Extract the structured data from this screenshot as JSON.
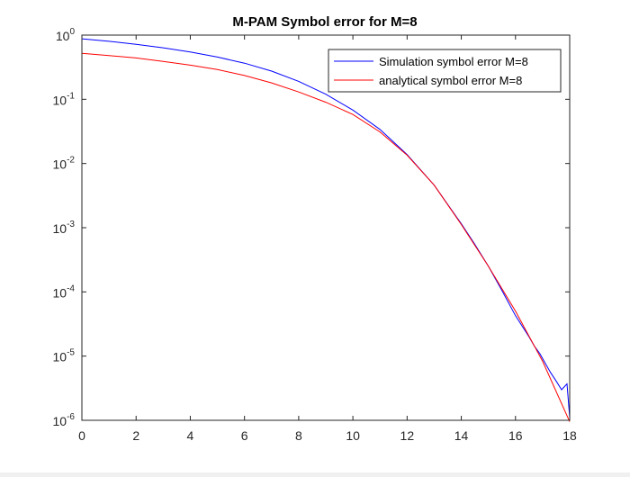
{
  "chart_data": {
    "type": "line",
    "title": "M-PAM Symbol error for M=8",
    "xlabel": "",
    "ylabel": "",
    "xlim": [
      0,
      18
    ],
    "ylim": [
      1e-06,
      1
    ],
    "yscale": "log",
    "grid": false,
    "legend_position": "top-right",
    "x_ticks": [
      0,
      2,
      4,
      6,
      8,
      10,
      12,
      14,
      16,
      18
    ],
    "y_ticks": [
      {
        "value": 1e-06,
        "base": "10",
        "exp": "-6"
      },
      {
        "value": 1e-05,
        "base": "10",
        "exp": "-5"
      },
      {
        "value": 0.0001,
        "base": "10",
        "exp": "-4"
      },
      {
        "value": 0.001,
        "base": "10",
        "exp": "-3"
      },
      {
        "value": 0.01,
        "base": "10",
        "exp": "-2"
      },
      {
        "value": 0.1,
        "base": "10",
        "exp": "-1"
      },
      {
        "value": 1,
        "base": "10",
        "exp": "0"
      }
    ],
    "series": [
      {
        "name": "Simulation symbol error M=8",
        "color": "#0000ff",
        "x": [
          0,
          1,
          2,
          3,
          4,
          5,
          6,
          7,
          8,
          9,
          10,
          11,
          12,
          13,
          14,
          14.5,
          15,
          15.5,
          16,
          16.5,
          16.7,
          16.9,
          17.1,
          17.3,
          17.5,
          17.7,
          17.9,
          18
        ],
        "y": [
          0.875,
          0.8,
          0.72,
          0.635,
          0.545,
          0.455,
          0.365,
          0.275,
          0.19,
          0.12,
          0.068,
          0.034,
          0.0138,
          0.0046,
          0.00115,
          0.00055,
          0.00025,
          0.000105,
          4.25e-05,
          2e-05,
          1.42e-05,
          1.09e-05,
          7.7e-06,
          5.5e-06,
          4.1e-06,
          3e-06,
          3.7e-06,
          1.1e-06
        ]
      },
      {
        "name": "analytical symbol error M=8",
        "color": "#ff0000",
        "x": [
          0,
          1,
          2,
          3,
          4,
          5,
          6,
          7,
          8,
          9,
          10,
          11,
          12,
          13,
          14,
          15,
          16,
          17,
          18
        ],
        "y": [
          0.52,
          0.48,
          0.44,
          0.39,
          0.34,
          0.29,
          0.235,
          0.18,
          0.13,
          0.09,
          0.058,
          0.031,
          0.0135,
          0.0046,
          0.00112,
          0.00025,
          5e-05,
          8.3e-06,
          9.5e-07
        ]
      }
    ]
  }
}
